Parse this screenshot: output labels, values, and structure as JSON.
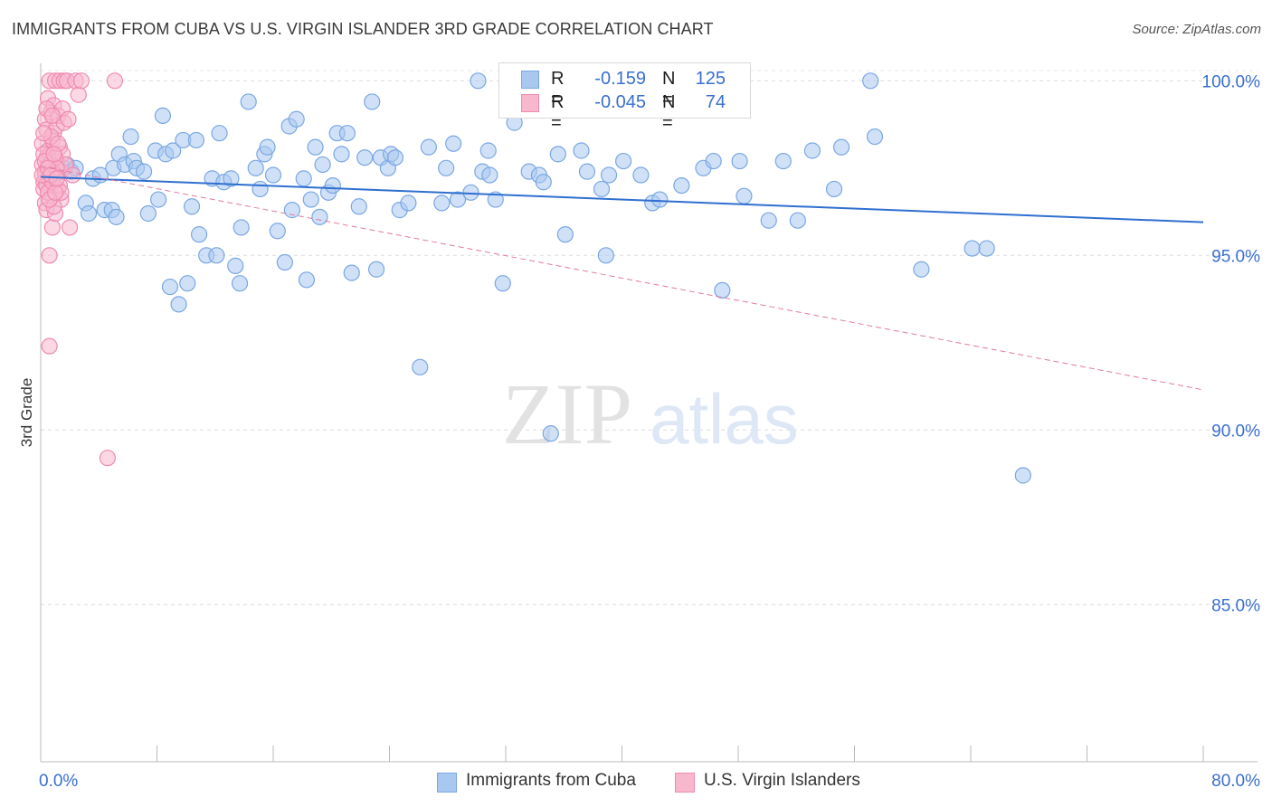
{
  "title": "IMMIGRANTS FROM CUBA VS U.S. VIRGIN ISLANDER 3RD GRADE CORRELATION CHART",
  "source": "Source: ZipAtlas.com",
  "watermark": {
    "zip": "ZIP",
    "atlas": "atlas"
  },
  "legend": {
    "r_label": "R =",
    "n_label": "N =",
    "rows": [
      {
        "name": "Immigrants from Cuba",
        "r": "-0.159",
        "n": "125",
        "fill": "#a9c8f0",
        "stroke": "#7aa7e3"
      },
      {
        "name": "U.S. Virgin Islanders",
        "r": "-0.045",
        "n": "74",
        "fill": "#f7b8cd",
        "stroke": "#f08ab0"
      }
    ]
  },
  "chart_data": {
    "type": "scatter",
    "title": "IMMIGRANTS FROM CUBA VS U.S. VIRGIN ISLANDER 3RD GRADE CORRELATION CHART",
    "xlabel": "",
    "ylabel": "3rd Grade",
    "xlim": [
      0,
      80
    ],
    "ylim": [
      80.5,
      100.5
    ],
    "x_tick_labels": [
      "0.0%",
      "80.0%"
    ],
    "y_ticks": [
      100,
      95,
      90,
      85
    ],
    "y_tick_labels": [
      "100.0%",
      "95.0%",
      "90.0%",
      "85.0%"
    ],
    "grid": true,
    "legend_position": "top-center",
    "series": [
      {
        "name": "Immigrants from Cuba",
        "color": "#7aa7e3",
        "trend": {
          "x": [
            0,
            80
          ],
          "y": [
            97.25,
            95.95
          ],
          "style": "solid",
          "color": "#2f6fd0"
        },
        "points": [
          [
            0.6,
            97.5
          ],
          [
            1.1,
            97.6
          ],
          [
            1.6,
            97.5
          ],
          [
            1.8,
            97.6
          ],
          [
            2.1,
            97.4
          ],
          [
            2.4,
            97.5
          ],
          [
            3.1,
            96.5
          ],
          [
            3.3,
            96.2
          ],
          [
            3.6,
            97.2
          ],
          [
            4.1,
            97.3
          ],
          [
            4.4,
            96.3
          ],
          [
            4.9,
            96.3
          ],
          [
            5.0,
            97.5
          ],
          [
            5.2,
            96.1
          ],
          [
            5.4,
            97.9
          ],
          [
            5.8,
            97.6
          ],
          [
            6.2,
            98.4
          ],
          [
            6.4,
            97.7
          ],
          [
            6.6,
            97.5
          ],
          [
            7.1,
            97.4
          ],
          [
            7.4,
            96.2
          ],
          [
            7.9,
            98.0
          ],
          [
            8.1,
            96.6
          ],
          [
            8.4,
            99.0
          ],
          [
            8.6,
            97.9
          ],
          [
            8.9,
            94.1
          ],
          [
            9.1,
            98.0
          ],
          [
            9.5,
            93.6
          ],
          [
            9.8,
            98.3
          ],
          [
            10.1,
            94.2
          ],
          [
            10.4,
            96.4
          ],
          [
            10.7,
            98.3
          ],
          [
            10.9,
            95.6
          ],
          [
            11.4,
            95.0
          ],
          [
            11.8,
            97.2
          ],
          [
            12.1,
            95.0
          ],
          [
            12.3,
            98.5
          ],
          [
            12.6,
            97.1
          ],
          [
            13.1,
            97.2
          ],
          [
            13.4,
            94.7
          ],
          [
            13.7,
            94.2
          ],
          [
            13.8,
            95.8
          ],
          [
            14.3,
            99.4
          ],
          [
            14.8,
            97.5
          ],
          [
            15.1,
            96.9
          ],
          [
            15.4,
            97.9
          ],
          [
            15.6,
            98.1
          ],
          [
            16.0,
            97.3
          ],
          [
            16.3,
            95.7
          ],
          [
            16.8,
            94.8
          ],
          [
            17.1,
            98.7
          ],
          [
            17.3,
            96.3
          ],
          [
            17.6,
            98.9
          ],
          [
            18.1,
            97.2
          ],
          [
            18.3,
            94.3
          ],
          [
            18.6,
            96.6
          ],
          [
            18.9,
            98.1
          ],
          [
            19.2,
            96.1
          ],
          [
            19.4,
            97.6
          ],
          [
            19.8,
            96.8
          ],
          [
            20.1,
            97.0
          ],
          [
            20.4,
            98.5
          ],
          [
            20.7,
            97.9
          ],
          [
            21.1,
            98.5
          ],
          [
            21.4,
            94.5
          ],
          [
            21.9,
            96.4
          ],
          [
            22.3,
            97.8
          ],
          [
            22.8,
            99.4
          ],
          [
            23.1,
            94.6
          ],
          [
            23.4,
            97.8
          ],
          [
            23.9,
            97.5
          ],
          [
            24.1,
            97.9
          ],
          [
            24.4,
            97.8
          ],
          [
            24.7,
            96.3
          ],
          [
            25.3,
            96.5
          ],
          [
            26.1,
            91.8
          ],
          [
            26.7,
            98.1
          ],
          [
            27.6,
            96.5
          ],
          [
            27.9,
            97.5
          ],
          [
            28.4,
            98.2
          ],
          [
            28.7,
            96.6
          ],
          [
            29.6,
            96.8
          ],
          [
            30.1,
            100.0
          ],
          [
            30.4,
            97.4
          ],
          [
            30.8,
            98.0
          ],
          [
            30.9,
            97.3
          ],
          [
            31.3,
            96.6
          ],
          [
            31.8,
            94.2
          ],
          [
            32.6,
            98.8
          ],
          [
            33.6,
            97.4
          ],
          [
            34.3,
            97.3
          ],
          [
            34.6,
            97.1
          ],
          [
            35.1,
            89.9
          ],
          [
            35.6,
            97.9
          ],
          [
            36.1,
            95.6
          ],
          [
            37.2,
            98.0
          ],
          [
            37.6,
            97.4
          ],
          [
            38.6,
            96.9
          ],
          [
            38.9,
            95.0
          ],
          [
            39.1,
            97.3
          ],
          [
            40.1,
            97.7
          ],
          [
            41.3,
            97.3
          ],
          [
            42.1,
            96.5
          ],
          [
            42.6,
            96.6
          ],
          [
            44.1,
            97.0
          ],
          [
            45.6,
            97.5
          ],
          [
            46.3,
            97.7
          ],
          [
            46.9,
            94.0
          ],
          [
            48.1,
            97.7
          ],
          [
            48.4,
            96.7
          ],
          [
            50.1,
            96.0
          ],
          [
            51.1,
            97.7
          ],
          [
            52.1,
            96.0
          ],
          [
            53.1,
            98.0
          ],
          [
            54.6,
            96.9
          ],
          [
            55.1,
            98.1
          ],
          [
            57.1,
            100.0
          ],
          [
            57.4,
            98.4
          ],
          [
            60.6,
            94.6
          ],
          [
            64.1,
            95.2
          ],
          [
            65.1,
            95.2
          ],
          [
            67.6,
            88.7
          ]
        ]
      },
      {
        "name": "U.S. Virgin Islanders",
        "color": "#f08ab0",
        "trend": {
          "x": [
            0,
            80
          ],
          "y": [
            97.55,
            91.15
          ],
          "style": "dashed",
          "color": "#e07aa0"
        },
        "points": [
          [
            0.1,
            97.6
          ],
          [
            0.1,
            98.2
          ],
          [
            0.2,
            97.1
          ],
          [
            0.2,
            96.9
          ],
          [
            0.3,
            98.9
          ],
          [
            0.3,
            96.5
          ],
          [
            0.3,
            97.4
          ],
          [
            0.4,
            98.6
          ],
          [
            0.4,
            97.8
          ],
          [
            0.4,
            96.3
          ],
          [
            0.5,
            99.5
          ],
          [
            0.5,
            98.0
          ],
          [
            0.5,
            97.2
          ],
          [
            0.6,
            95.0
          ],
          [
            0.6,
            92.4
          ],
          [
            0.6,
            100.0
          ],
          [
            0.7,
            99.1
          ],
          [
            0.7,
            97.9
          ],
          [
            0.7,
            97.0
          ],
          [
            0.8,
            98.3
          ],
          [
            0.8,
            96.7
          ],
          [
            0.8,
            95.8
          ],
          [
            0.9,
            99.3
          ],
          [
            0.9,
            98.5
          ],
          [
            0.9,
            97.5
          ],
          [
            1.0,
            100.0
          ],
          [
            1.0,
            97.3
          ],
          [
            1.0,
            96.2
          ],
          [
            1.1,
            98.7
          ],
          [
            1.1,
            97.7
          ],
          [
            1.2,
            99.0
          ],
          [
            1.2,
            96.9
          ],
          [
            1.3,
            100.0
          ],
          [
            1.3,
            98.1
          ],
          [
            1.4,
            97.4
          ],
          [
            1.4,
            96.6
          ],
          [
            1.5,
            99.2
          ],
          [
            1.5,
            97.9
          ],
          [
            1.6,
            100.0
          ],
          [
            1.6,
            98.8
          ],
          [
            1.7,
            97.6
          ],
          [
            1.8,
            100.0
          ],
          [
            1.9,
            98.9
          ],
          [
            2.0,
            95.8
          ],
          [
            2.2,
            97.3
          ],
          [
            2.4,
            100.0
          ],
          [
            2.6,
            99.6
          ],
          [
            2.8,
            100.0
          ],
          [
            4.6,
            89.2
          ],
          [
            5.1,
            100.0
          ],
          [
            0.2,
            97.9
          ],
          [
            0.3,
            97.3
          ],
          [
            0.4,
            97.0
          ],
          [
            0.5,
            96.8
          ],
          [
            0.6,
            97.6
          ],
          [
            0.7,
            98.4
          ],
          [
            0.8,
            97.1
          ],
          [
            0.9,
            96.4
          ],
          [
            1.0,
            97.8
          ],
          [
            1.1,
            97.5
          ],
          [
            1.2,
            98.2
          ],
          [
            1.3,
            97.0
          ],
          [
            1.4,
            96.8
          ],
          [
            0.1,
            97.3
          ],
          [
            0.2,
            98.5
          ],
          [
            0.3,
            97.7
          ],
          [
            0.4,
            99.2
          ],
          [
            0.5,
            97.5
          ],
          [
            0.6,
            96.6
          ],
          [
            0.7,
            97.3
          ],
          [
            0.8,
            99.0
          ],
          [
            0.9,
            97.9
          ],
          [
            1.0,
            96.8
          ],
          [
            1.1,
            97.2
          ]
        ]
      }
    ]
  }
}
